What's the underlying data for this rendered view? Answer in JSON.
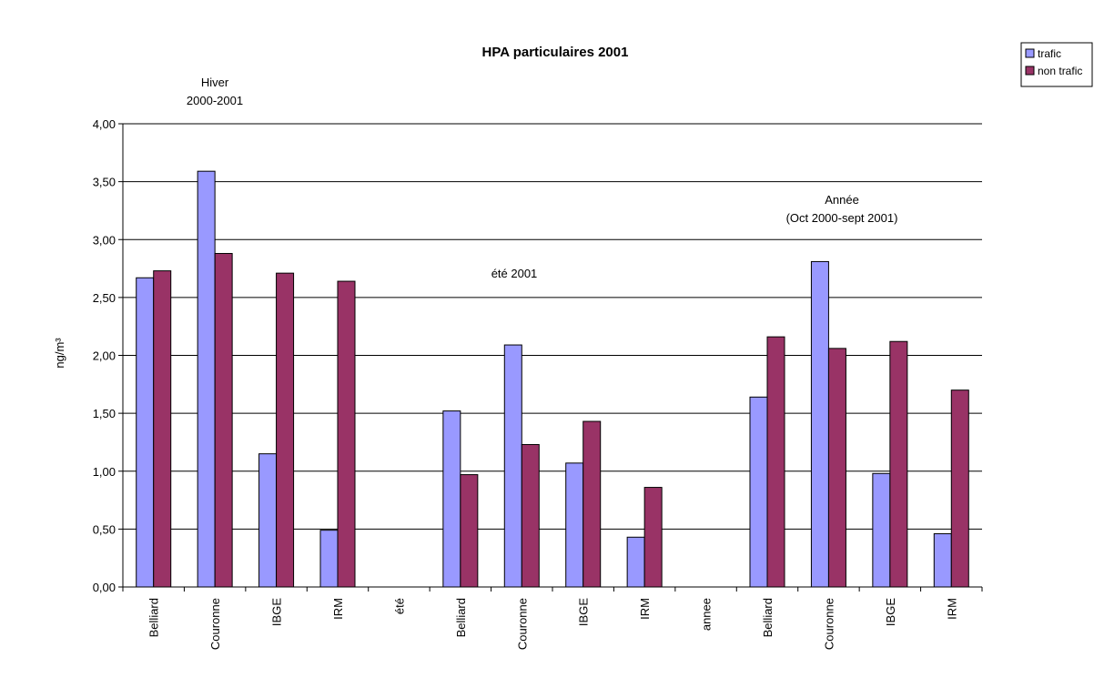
{
  "chart_data": {
    "type": "bar",
    "title": "HPA particulaires 2001",
    "ylabel": "ng/m³",
    "xlabel": "",
    "ylim": [
      0,
      4
    ],
    "yticks": [
      "0,00",
      "0,50",
      "1,00",
      "1,50",
      "2,00",
      "2,50",
      "3,00",
      "3,50",
      "4,00"
    ],
    "ytick_values": [
      0,
      0.5,
      1,
      1.5,
      2,
      2.5,
      3,
      3.5,
      4
    ],
    "grid": true,
    "legend_position": "top-right",
    "categories": [
      "Belliard",
      "Couronne",
      "IBGE",
      "IRM",
      "été",
      "Belliard",
      "Couronne",
      "IBGE",
      "IRM",
      "annee",
      "Belliard",
      "Couronne",
      "IBGE",
      "IRM"
    ],
    "series": [
      {
        "name": "trafic",
        "color": "#9999ff",
        "values": [
          2.67,
          3.59,
          1.15,
          0.49,
          null,
          1.52,
          2.09,
          1.07,
          0.43,
          null,
          1.64,
          2.81,
          0.98,
          0.46
        ]
      },
      {
        "name": "non trafic",
        "color": "#993366",
        "values": [
          2.73,
          2.88,
          2.71,
          2.64,
          null,
          0.97,
          1.23,
          1.43,
          0.86,
          null,
          2.16,
          2.06,
          2.12,
          1.7
        ]
      }
    ],
    "annotations": [
      {
        "lines": [
          "Hiver",
          "2000-2001"
        ]
      },
      {
        "lines": [
          "été 2001"
        ]
      },
      {
        "lines": [
          "Année",
          "(Oct 2000-sept 2001)"
        ]
      }
    ]
  }
}
